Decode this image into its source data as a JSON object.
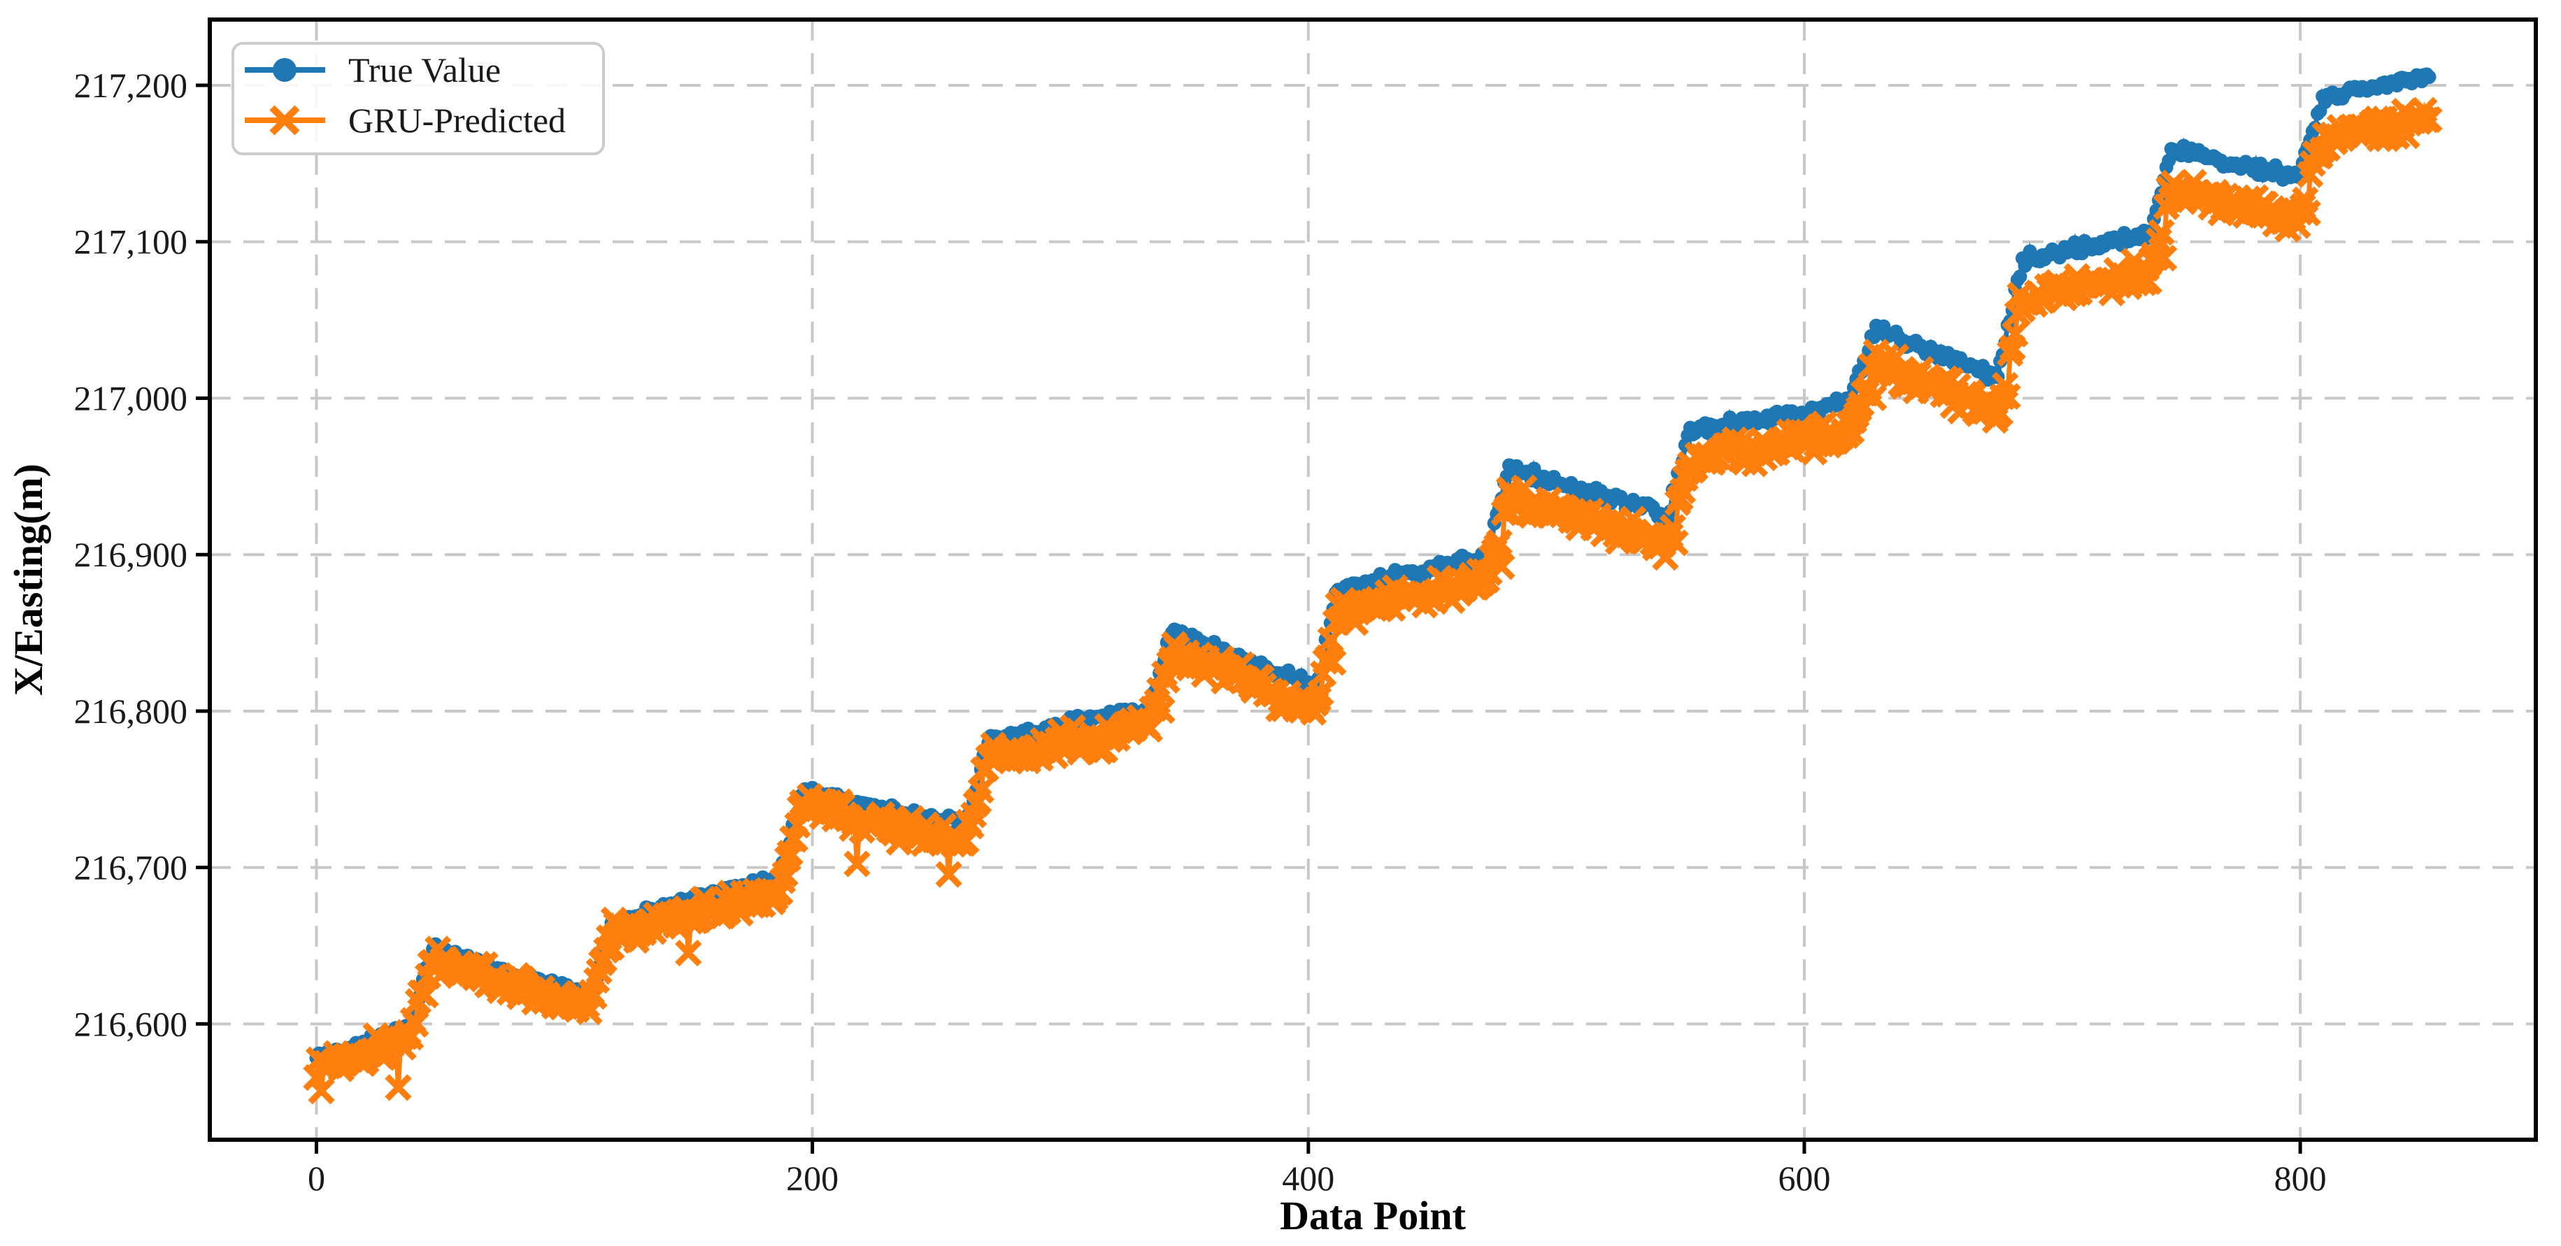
{
  "chart_data": {
    "type": "line",
    "title": "",
    "xlabel": "Data Point",
    "ylabel": "X/Easting(m)",
    "xlim": [
      -43,
      895
    ],
    "ylim": [
      216526,
      217242
    ],
    "grid": true,
    "grid_color": "#c8c8c8",
    "frame_color": "#000000",
    "x_ticks": [
      0,
      200,
      400,
      600,
      800
    ],
    "x_tick_labels": [
      "0",
      "200",
      "400",
      "600",
      "800"
    ],
    "y_ticks": [
      216600,
      216700,
      216800,
      216900,
      217000,
      217100,
      217200
    ],
    "y_tick_labels": [
      "216,600",
      "216,700",
      "216,800",
      "216,900",
      "217,000",
      "217,100",
      "217,200"
    ],
    "legend": {
      "position": "upper-left",
      "entries": [
        {
          "label": "True Value",
          "color": "#1f77b4",
          "marker": "circle"
        },
        {
          "label": "GRU-Predicted",
          "color": "#ff7f0e",
          "marker": "x"
        }
      ]
    },
    "series": [
      {
        "name": "True Value",
        "color": "#1f77b4",
        "marker": "circle",
        "marker_radius": 10,
        "anchors": [
          [
            0,
            216578
          ],
          [
            38,
            216598
          ],
          [
            47,
            216648
          ],
          [
            110,
            216617
          ],
          [
            119,
            216665
          ],
          [
            187,
            216694
          ],
          [
            196,
            216749
          ],
          [
            262,
            216726
          ],
          [
            271,
            216781
          ],
          [
            336,
            216802
          ],
          [
            345,
            216851
          ],
          [
            403,
            216815
          ],
          [
            412,
            216878
          ],
          [
            472,
            216899
          ],
          [
            481,
            216955
          ],
          [
            545,
            216925
          ],
          [
            554,
            216979
          ],
          [
            618,
            216997
          ],
          [
            629,
            217045
          ],
          [
            678,
            217013
          ],
          [
            688,
            217088
          ],
          [
            740,
            217106
          ],
          [
            748,
            217159
          ],
          [
            799,
            217141
          ],
          [
            809,
            217192
          ],
          [
            852,
            217206
          ]
        ],
        "noise": 5
      },
      {
        "name": "GRU-Predicted",
        "color": "#ff7f0e",
        "marker": "x",
        "marker_half": 16,
        "marker_stroke": 9,
        "offset_below_true_start": 6,
        "offset_below_true_end": 28,
        "offset_exponent": 1.3,
        "noise": 10,
        "outliers": [
          [
            2,
            -14
          ],
          [
            33,
            -22
          ],
          [
            150,
            -20
          ],
          [
            218,
            -25
          ],
          [
            255,
            -18
          ],
          [
            341,
            -20
          ],
          [
            410,
            -22
          ],
          [
            478,
            -20
          ],
          [
            548,
            -22
          ],
          [
            628,
            -18
          ],
          [
            682,
            -15
          ],
          [
            745,
            -20
          ],
          [
            803,
            -25
          ]
        ]
      }
    ],
    "n_points": 853
  }
}
